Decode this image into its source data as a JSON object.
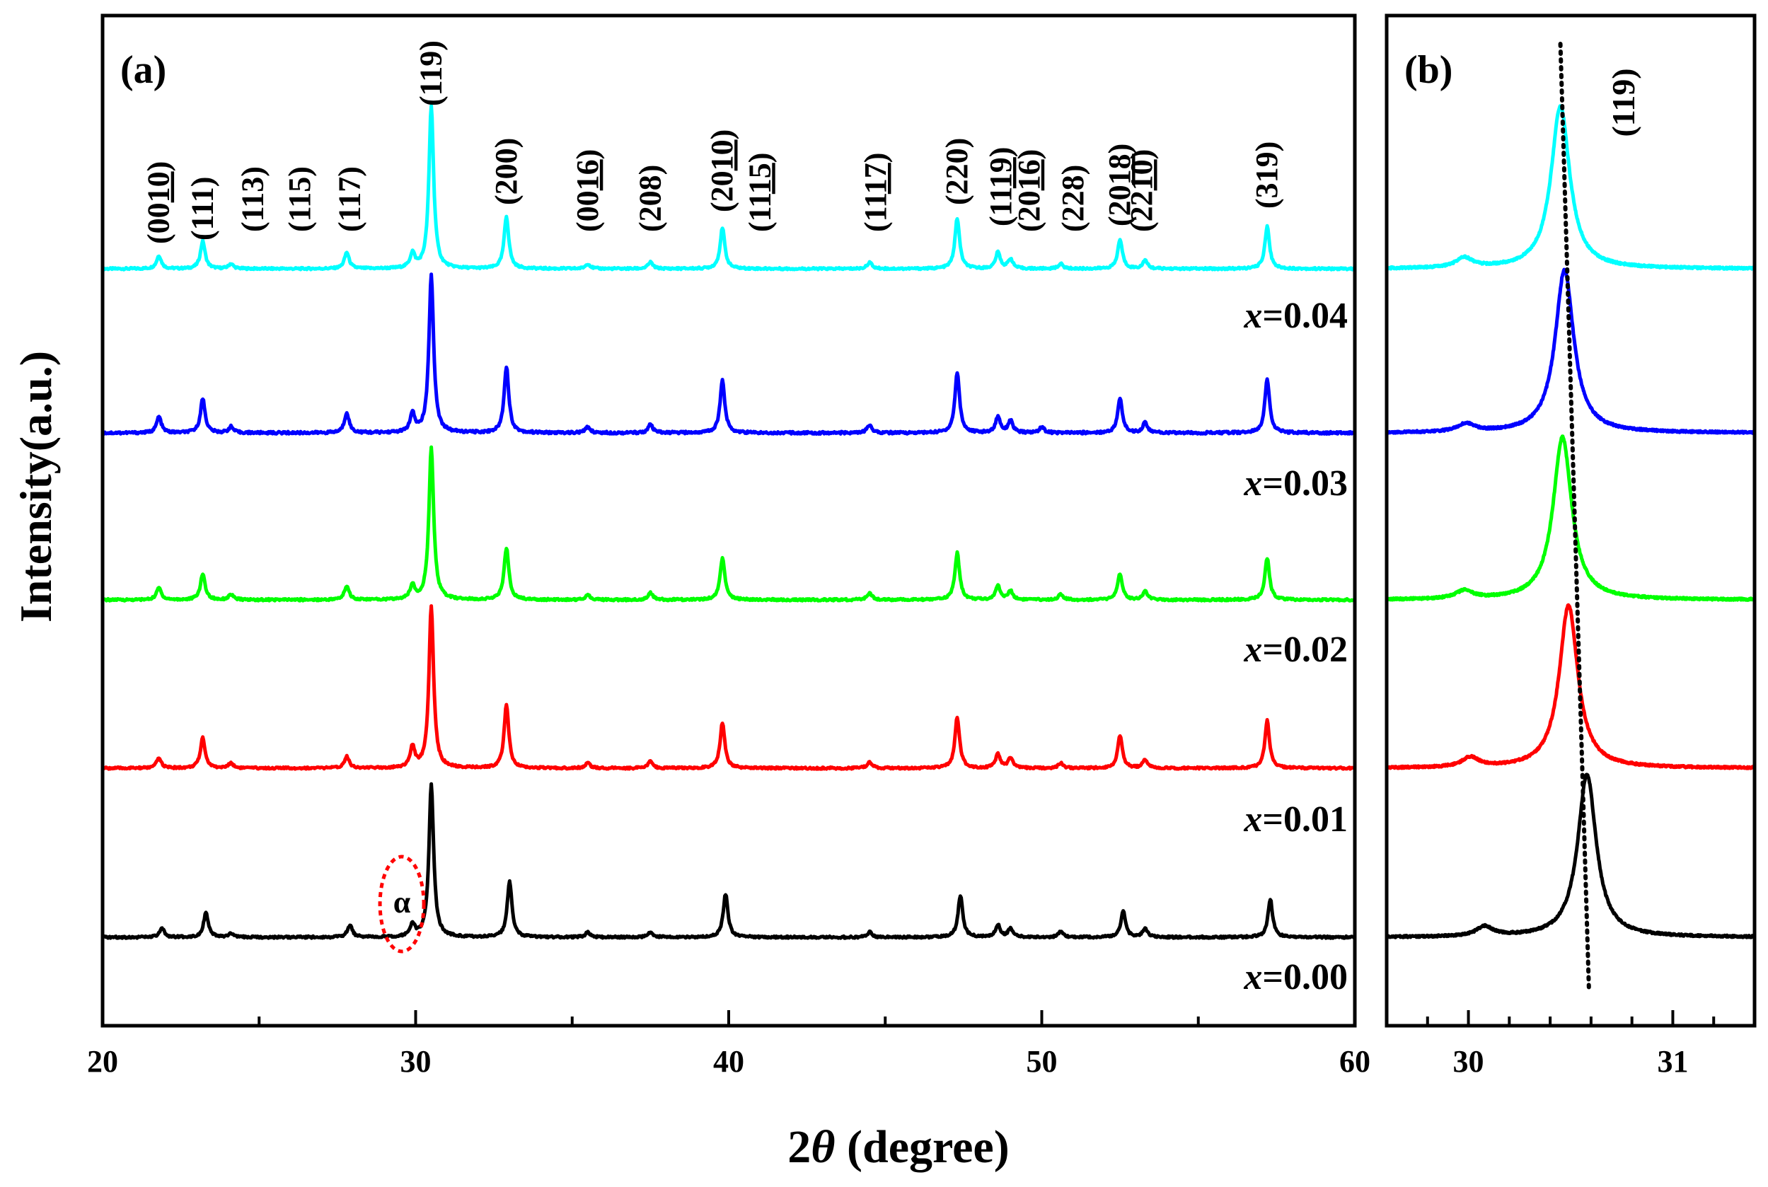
{
  "chart_data": [
    {
      "panel": "(a)",
      "type": "line",
      "title": "",
      "xlabel_prefix": "2",
      "xlabel_symbol": "θ",
      "xlabel_suffix": " (degree)",
      "ylabel": "Intensity(a.u.)",
      "xlim": [
        20,
        60
      ],
      "xticks": [
        20,
        30,
        40,
        50,
        60
      ],
      "grid": false,
      "legend": "none",
      "series": [
        {
          "name": "x=0.04",
          "var": "x",
          "eq": "=0.04",
          "color": "#00ffff",
          "peaks": [
            [
              21.8,
              0.08
            ],
            [
              23.2,
              0.17
            ],
            [
              24.1,
              0.03
            ],
            [
              27.8,
              0.1
            ],
            [
              29.9,
              0.09
            ],
            [
              30.5,
              1.0
            ],
            [
              32.9,
              0.32
            ],
            [
              35.5,
              0.03
            ],
            [
              37.5,
              0.04
            ],
            [
              39.8,
              0.25
            ],
            [
              44.5,
              0.04
            ],
            [
              47.3,
              0.31
            ],
            [
              48.6,
              0.1
            ],
            [
              49.0,
              0.06
            ],
            [
              50.6,
              0.03
            ],
            [
              52.5,
              0.18
            ],
            [
              53.3,
              0.05
            ],
            [
              57.2,
              0.26
            ]
          ]
        },
        {
          "name": "x=0.03",
          "var": "x",
          "eq": "=0.03",
          "color": "#0000ff",
          "peaks": [
            [
              21.8,
              0.08
            ],
            [
              23.2,
              0.17
            ],
            [
              24.1,
              0.03
            ],
            [
              27.8,
              0.1
            ],
            [
              29.9,
              0.09
            ],
            [
              30.5,
              0.78
            ],
            [
              32.9,
              0.33
            ],
            [
              35.5,
              0.03
            ],
            [
              37.5,
              0.04
            ],
            [
              39.8,
              0.26
            ],
            [
              44.5,
              0.04
            ],
            [
              47.3,
              0.3
            ],
            [
              48.6,
              0.08
            ],
            [
              49.0,
              0.06
            ],
            [
              50.0,
              0.03
            ],
            [
              52.5,
              0.17
            ],
            [
              53.3,
              0.05
            ],
            [
              57.2,
              0.27
            ]
          ]
        },
        {
          "name": "x=0.02",
          "var": "x",
          "eq": "=0.02",
          "color": "#00ff00",
          "peaks": [
            [
              21.8,
              0.07
            ],
            [
              23.2,
              0.15
            ],
            [
              24.1,
              0.03
            ],
            [
              27.8,
              0.08
            ],
            [
              29.9,
              0.08
            ],
            [
              30.5,
              0.88
            ],
            [
              32.9,
              0.3
            ],
            [
              35.5,
              0.03
            ],
            [
              37.5,
              0.04
            ],
            [
              39.8,
              0.24
            ],
            [
              44.5,
              0.04
            ],
            [
              47.3,
              0.27
            ],
            [
              48.6,
              0.08
            ],
            [
              49.0,
              0.05
            ],
            [
              50.6,
              0.03
            ],
            [
              52.5,
              0.15
            ],
            [
              53.3,
              0.05
            ],
            [
              57.2,
              0.24
            ]
          ]
        },
        {
          "name": "x=0.01",
          "var": "x",
          "eq": "=0.01",
          "color": "#ff0000",
          "peaks": [
            [
              21.8,
              0.06
            ],
            [
              23.2,
              0.18
            ],
            [
              24.1,
              0.03
            ],
            [
              27.8,
              0.07
            ],
            [
              29.9,
              0.12
            ],
            [
              30.5,
              0.95
            ],
            [
              32.9,
              0.37
            ],
            [
              35.5,
              0.03
            ],
            [
              37.5,
              0.04
            ],
            [
              39.8,
              0.27
            ],
            [
              44.5,
              0.04
            ],
            [
              47.3,
              0.3
            ],
            [
              48.6,
              0.08
            ],
            [
              49.0,
              0.06
            ],
            [
              50.6,
              0.03
            ],
            [
              52.5,
              0.19
            ],
            [
              53.3,
              0.05
            ],
            [
              57.2,
              0.28
            ]
          ]
        },
        {
          "name": "x=0.00",
          "var": "x",
          "eq": "=0.00",
          "color": "#000000",
          "peaks": [
            [
              21.9,
              0.05
            ],
            [
              23.3,
              0.14
            ],
            [
              24.1,
              0.02
            ],
            [
              27.9,
              0.07
            ],
            [
              29.9,
              0.07
            ],
            [
              30.5,
              0.88
            ],
            [
              33.0,
              0.32
            ],
            [
              35.5,
              0.03
            ],
            [
              37.5,
              0.03
            ],
            [
              39.9,
              0.25
            ],
            [
              44.5,
              0.03
            ],
            [
              47.4,
              0.24
            ],
            [
              48.6,
              0.07
            ],
            [
              49.0,
              0.05
            ],
            [
              50.6,
              0.03
            ],
            [
              52.6,
              0.15
            ],
            [
              53.3,
              0.05
            ],
            [
              57.3,
              0.22
            ]
          ]
        }
      ],
      "annotations": {
        "impurity_label": "α",
        "impurity_angle": 29.9,
        "miller_indices": [
          {
            "pre": "(00",
            "under": "10",
            "post": ")",
            "x": 21.8
          },
          {
            "pre": "(111)",
            "under": "",
            "post": "",
            "x": 23.2
          },
          {
            "pre": "(113)",
            "under": "",
            "post": "",
            "x": 24.8
          },
          {
            "pre": "(115)",
            "under": "",
            "post": "",
            "x": 26.3
          },
          {
            "pre": "(117)",
            "under": "",
            "post": "",
            "x": 27.9
          },
          {
            "pre": "(119)",
            "under": "",
            "post": "",
            "x": 30.5
          },
          {
            "pre": "(200)",
            "under": "",
            "post": "",
            "x": 32.9
          },
          {
            "pre": "(00",
            "under": "16",
            "post": ")",
            "x": 35.5
          },
          {
            "pre": "(208)",
            "under": "",
            "post": "",
            "x": 37.5
          },
          {
            "pre": "(20",
            "under": "10",
            "post": ")",
            "x": 39.8
          },
          {
            "pre": "(11",
            "under": "15",
            "post": ")",
            "x": 41.0
          },
          {
            "pre": "(11",
            "under": "17",
            "post": ")",
            "x": 44.7
          },
          {
            "pre": "(220)",
            "under": "",
            "post": "",
            "x": 47.3
          },
          {
            "pre": "(11",
            "under": "19",
            "post": ")",
            "x": 48.7
          },
          {
            "pre": "(20",
            "under": "16",
            "post": ")",
            "x": 49.6
          },
          {
            "pre": "(228)",
            "under": "",
            "post": "",
            "x": 51.0
          },
          {
            "pre": "(20",
            "under": "18",
            "post": ")",
            "x": 52.5
          },
          {
            "pre": "(22",
            "under": "10",
            "post": ")",
            "x": 53.2
          },
          {
            "pre": "(319)",
            "under": "",
            "post": "",
            "x": 57.2
          }
        ]
      }
    },
    {
      "panel": "(b)",
      "type": "line",
      "title": "",
      "xlim": [
        29.6,
        31.4
      ],
      "xticks": [
        30,
        31
      ],
      "minor_step": 0.2,
      "grid": false,
      "legend": "none",
      "peak_label": "(119)",
      "guide_line": {
        "style": "dotted",
        "from": 30.45,
        "to": 30.59
      },
      "series": [
        {
          "name": "x=0.04",
          "color": "#00ffff",
          "peak_center": 30.45,
          "minor_peak": [
            29.98,
            0.06
          ]
        },
        {
          "name": "x=0.03",
          "color": "#0000ff",
          "peak_center": 30.47,
          "minor_peak": [
            29.99,
            0.05
          ]
        },
        {
          "name": "x=0.02",
          "color": "#00ff00",
          "peak_center": 30.46,
          "minor_peak": [
            29.98,
            0.05
          ]
        },
        {
          "name": "x=0.01",
          "color": "#ff0000",
          "peak_center": 30.49,
          "minor_peak": [
            30.01,
            0.06
          ]
        },
        {
          "name": "x=0.00",
          "color": "#000000",
          "peak_center": 30.58,
          "minor_peak": [
            30.08,
            0.06
          ]
        }
      ]
    }
  ]
}
